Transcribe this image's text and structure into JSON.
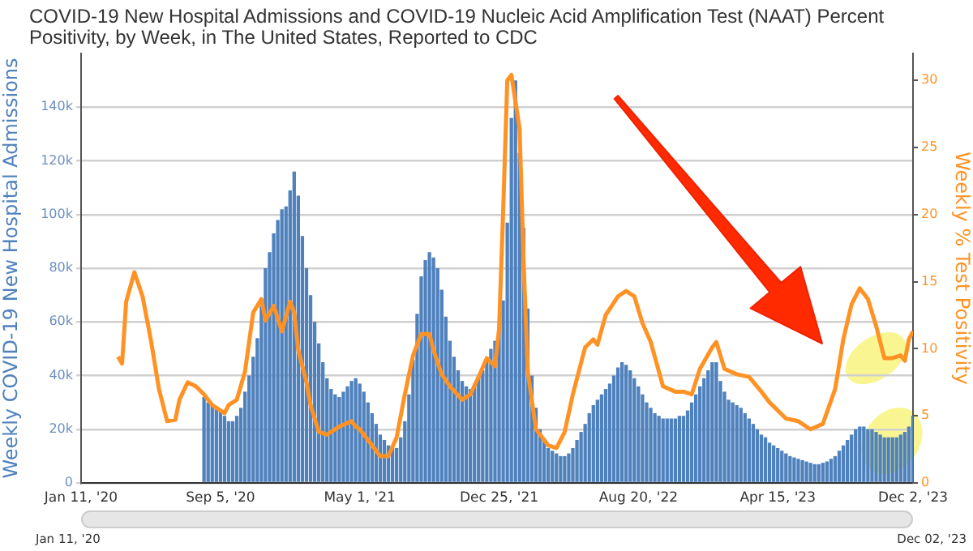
{
  "chart_data": {
    "type": "bar",
    "title": "COVID-19 New Hospital Admissions and COVID-19 Nucleic Acid Amplification Test (NAAT) Percent Positivity, by Week, in The United States, Reported to CDC",
    "ylabel": "Weekly COVID-19 New Hospital Admissions",
    "y2label": "Weekly % Test Positivity",
    "xlim": [
      "2020-01-11",
      "2023-12-02"
    ],
    "xticks": [
      {
        "value": "2020-01-11",
        "label": "Jan 11, '20"
      },
      {
        "value": "2020-09-05",
        "label": "Sep 5, '20"
      },
      {
        "value": "2021-05-01",
        "label": "May 1, '21"
      },
      {
        "value": "2021-12-25",
        "label": "Dec 25, '21"
      },
      {
        "value": "2022-08-20",
        "label": "Aug 20, '22"
      },
      {
        "value": "2023-04-15",
        "label": "Apr 15, '23"
      },
      {
        "value": "2023-12-02",
        "label": "Dec 2, '23"
      }
    ],
    "ylim": [
      0,
      160000
    ],
    "yticks": [
      0,
      {
        "value": 20000,
        "label": "20k"
      },
      {
        "value": 40000,
        "label": "40k"
      },
      {
        "value": 60000,
        "label": "60k"
      },
      {
        "value": 80000,
        "label": "80k"
      },
      {
        "value": 100000,
        "label": "100k"
      },
      {
        "value": 120000,
        "label": "120k"
      },
      {
        "value": 140000,
        "label": "140k"
      }
    ],
    "y2lim": [
      0,
      32
    ],
    "y2ticks": [
      0,
      5,
      10,
      15,
      20,
      25,
      30
    ],
    "grid": "y",
    "marker": "none",
    "annotations": [
      "Jan 11, '20",
      "Dec 02, '23"
    ],
    "series": [
      {
        "color": "#4f81bd",
        "x": [
          "2020-08-08",
          "2020-08-15",
          "2020-08-22",
          "2020-08-29",
          "2020-09-05",
          "2020-09-12",
          "2020-09-19",
          "2020-09-26",
          "2020-10-03",
          "2020-10-10",
          "2020-10-17",
          "2020-10-24",
          "2020-10-31",
          "2020-11-07",
          "2020-11-14",
          "2020-11-21",
          "2020-11-28",
          "2020-12-05",
          "2020-12-12",
          "2020-12-19",
          "2020-12-26",
          "2021-01-02",
          "2021-01-09",
          "2021-01-16",
          "2021-01-23",
          "2021-01-30",
          "2021-02-06",
          "2021-02-13",
          "2021-02-20",
          "2021-02-27",
          "2021-03-06",
          "2021-03-13",
          "2021-03-20",
          "2021-03-27",
          "2021-04-03",
          "2021-04-10",
          "2021-04-17",
          "2021-04-24",
          "2021-05-01",
          "2021-05-08",
          "2021-05-15",
          "2021-05-22",
          "2021-05-29",
          "2021-06-05",
          "2021-06-12",
          "2021-06-19",
          "2021-06-26",
          "2021-07-03",
          "2021-07-10",
          "2021-07-17",
          "2021-07-24",
          "2021-07-31",
          "2021-08-07",
          "2021-08-14",
          "2021-08-21",
          "2021-08-28",
          "2021-09-04",
          "2021-09-11",
          "2021-09-18",
          "2021-09-25",
          "2021-10-02",
          "2021-10-09",
          "2021-10-16",
          "2021-10-23",
          "2021-10-30",
          "2021-11-06",
          "2021-11-13",
          "2021-11-20",
          "2021-11-27",
          "2021-12-04",
          "2021-12-11",
          "2021-12-18",
          "2021-12-25",
          "2022-01-01",
          "2022-01-08",
          "2022-01-15",
          "2022-01-22",
          "2022-01-29",
          "2022-02-05",
          "2022-02-12",
          "2022-02-19",
          "2022-02-26",
          "2022-03-05",
          "2022-03-12",
          "2022-03-19",
          "2022-03-26",
          "2022-04-02",
          "2022-04-09",
          "2022-04-16",
          "2022-04-23",
          "2022-04-30",
          "2022-05-07",
          "2022-05-14",
          "2022-05-21",
          "2022-05-28",
          "2022-06-04",
          "2022-06-11",
          "2022-06-18",
          "2022-06-25",
          "2022-07-02",
          "2022-07-09",
          "2022-07-16",
          "2022-07-23",
          "2022-07-30",
          "2022-08-06",
          "2022-08-13",
          "2022-08-20",
          "2022-08-27",
          "2022-09-03",
          "2022-09-10",
          "2022-09-17",
          "2022-09-24",
          "2022-10-01",
          "2022-10-08",
          "2022-10-15",
          "2022-10-22",
          "2022-10-29",
          "2022-11-05",
          "2022-11-12",
          "2022-11-19",
          "2022-11-26",
          "2022-12-03",
          "2022-12-10",
          "2022-12-17",
          "2022-12-24",
          "2022-12-31",
          "2023-01-07",
          "2023-01-14",
          "2023-01-21",
          "2023-01-28",
          "2023-02-04",
          "2023-02-11",
          "2023-02-18",
          "2023-02-25",
          "2023-03-04",
          "2023-03-11",
          "2023-03-18",
          "2023-03-25",
          "2023-04-01",
          "2023-04-08",
          "2023-04-15",
          "2023-04-22",
          "2023-04-29",
          "2023-05-06",
          "2023-05-13",
          "2023-05-20",
          "2023-05-27",
          "2023-06-03",
          "2023-06-10",
          "2023-06-17",
          "2023-06-24",
          "2023-07-01",
          "2023-07-08",
          "2023-07-15",
          "2023-07-22",
          "2023-07-29",
          "2023-08-05",
          "2023-08-12",
          "2023-08-19",
          "2023-08-26",
          "2023-09-02",
          "2023-09-09",
          "2023-09-16",
          "2023-09-23",
          "2023-09-30",
          "2023-10-07",
          "2023-10-14",
          "2023-10-21",
          "2023-10-28",
          "2023-11-04",
          "2023-11-11",
          "2023-11-18",
          "2023-11-25",
          "2023-12-02"
        ],
        "values": [
          32000,
          30000,
          29000,
          28000,
          27000,
          25000,
          23000,
          23000,
          25000,
          28000,
          34000,
          40000,
          47000,
          54000,
          66000,
          80000,
          86000,
          93000,
          98000,
          102000,
          103000,
          109000,
          116000,
          107000,
          92000,
          80000,
          70000,
          60000,
          52000,
          45000,
          39000,
          35000,
          33000,
          32000,
          34000,
          36000,
          38000,
          39000,
          37000,
          34000,
          30000,
          26000,
          22000,
          18000,
          16000,
          14000,
          13000,
          13000,
          17000,
          23000,
          33000,
          46000,
          63000,
          77000,
          83000,
          86000,
          84000,
          80000,
          72000,
          62000,
          53000,
          47000,
          42000,
          38000,
          36000,
          35000,
          37000,
          40000,
          42000,
          46000,
          50000,
          53000,
          57000,
          68000,
          97000,
          136000,
          150000,
          123000,
          95000,
          65000,
          40000,
          28000,
          20000,
          16000,
          13000,
          12000,
          11000,
          10000,
          10000,
          11000,
          13000,
          16000,
          19000,
          22000,
          26000,
          29000,
          31000,
          33000,
          35000,
          37000,
          40000,
          43000,
          45000,
          44000,
          42000,
          39000,
          36000,
          33000,
          30000,
          28000,
          26000,
          25000,
          24000,
          24000,
          24000,
          24000,
          25000,
          25000,
          27000,
          30000,
          33000,
          36000,
          39000,
          42000,
          45000,
          45000,
          38000,
          34000,
          31000,
          30000,
          29000,
          28000,
          26000,
          24000,
          22000,
          20000,
          18000,
          17000,
          15000,
          14000,
          13000,
          12000,
          11000,
          10000,
          9500,
          9000,
          8500,
          8000,
          7500,
          7000,
          7000,
          7500,
          8000,
          9000,
          10000,
          12000,
          14000,
          16000,
          18000,
          20000,
          21000,
          21000,
          20000,
          20000,
          19000,
          18000,
          17000,
          17000,
          17000,
          17000,
          18000,
          19000,
          21000,
          25000
        ]
      },
      {
        "type": "line",
        "axis": "y2",
        "color": "#ff9224",
        "x": [
          "2020-03-14",
          "2020-03-21",
          "2020-03-28",
          "2020-04-11",
          "2020-04-25",
          "2020-05-09",
          "2020-05-23",
          "2020-06-06",
          "2020-06-20",
          "2020-06-27",
          "2020-07-11",
          "2020-07-25",
          "2020-08-08",
          "2020-08-22",
          "2020-09-12",
          "2020-09-19",
          "2020-10-03",
          "2020-10-17",
          "2020-10-31",
          "2020-11-14",
          "2020-11-21",
          "2020-12-05",
          "2020-12-19",
          "2021-01-02",
          "2021-01-09",
          "2021-01-16",
          "2021-01-30",
          "2021-02-06",
          "2021-02-20",
          "2021-03-06",
          "2021-03-27",
          "2021-04-17",
          "2021-04-24",
          "2021-05-01",
          "2021-05-22",
          "2021-06-05",
          "2021-06-19",
          "2021-07-03",
          "2021-07-17",
          "2021-07-31",
          "2021-08-14",
          "2021-08-28",
          "2021-09-04",
          "2021-09-18",
          "2021-10-02",
          "2021-10-23",
          "2021-11-06",
          "2021-11-20",
          "2021-12-04",
          "2021-12-18",
          "2021-12-25",
          "2022-01-01",
          "2022-01-08",
          "2022-01-15",
          "2022-01-29",
          "2022-02-05",
          "2022-02-12",
          "2022-02-26",
          "2022-03-19",
          "2022-04-02",
          "2022-04-16",
          "2022-04-30",
          "2022-05-21",
          "2022-06-04",
          "2022-06-11",
          "2022-06-25",
          "2022-07-16",
          "2022-07-30",
          "2022-08-13",
          "2022-08-27",
          "2022-09-10",
          "2022-10-01",
          "2022-10-22",
          "2022-11-05",
          "2022-11-19",
          "2022-12-03",
          "2022-12-24",
          "2022-12-31",
          "2023-01-14",
          "2023-02-04",
          "2023-02-25",
          "2023-03-18",
          "2023-04-01",
          "2023-04-29",
          "2023-05-20",
          "2023-06-10",
          "2023-07-01",
          "2023-07-22",
          "2023-08-05",
          "2023-08-19",
          "2023-09-02",
          "2023-09-16",
          "2023-09-30",
          "2023-10-14",
          "2023-10-28",
          "2023-11-11",
          "2023-11-18",
          "2023-11-25",
          "2023-12-02"
        ],
        "values": [
          9.4,
          8.9,
          13.5,
          15.7,
          13.9,
          10.7,
          7.0,
          4.6,
          4.7,
          6.2,
          7.5,
          7.2,
          6.6,
          5.8,
          5.2,
          5.8,
          6.2,
          8.3,
          12.7,
          13.7,
          12.1,
          13.2,
          11.3,
          13.5,
          12.7,
          9.9,
          7.5,
          5.8,
          3.8,
          3.6,
          4.2,
          4.6,
          4.2,
          4.0,
          2.8,
          2.0,
          2.0,
          3.4,
          6.6,
          9.5,
          11.1,
          11.1,
          9.9,
          8.1,
          7.2,
          6.2,
          6.6,
          7.9,
          9.3,
          8.7,
          11.5,
          20.3,
          30.0,
          30.4,
          26.4,
          16.3,
          8.3,
          4.0,
          2.8,
          2.6,
          3.8,
          6.6,
          10.1,
          10.7,
          10.3,
          12.5,
          13.9,
          14.3,
          13.9,
          11.9,
          10.5,
          7.2,
          6.8,
          6.8,
          6.6,
          8.5,
          10.1,
          10.5,
          8.5,
          8.1,
          7.9,
          6.8,
          6.0,
          4.8,
          4.6,
          4.0,
          4.4,
          7.0,
          10.7,
          13.3,
          14.5,
          13.7,
          11.7,
          9.3,
          9.3,
          9.5,
          9.1,
          10.7,
          11.3
        ]
      }
    ]
  }
}
